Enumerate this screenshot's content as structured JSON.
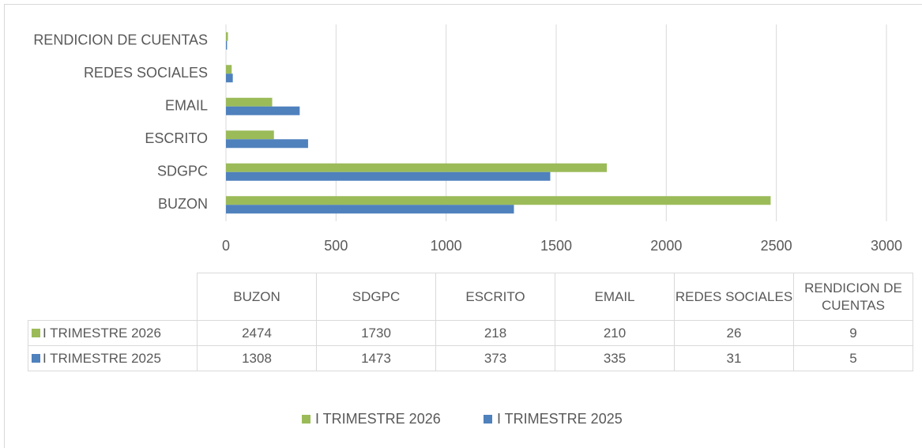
{
  "chart_data": {
    "type": "bar",
    "orientation": "horizontal",
    "categories": [
      "BUZON",
      "SDGPC",
      "ESCRITO",
      "EMAIL",
      "REDES SOCIALES",
      "RENDICION DE CUENTAS"
    ],
    "series": [
      {
        "name": "I TRIMESTRE 2026",
        "color": "#9bbb59",
        "values": [
          2474,
          1730,
          218,
          210,
          26,
          9
        ]
      },
      {
        "name": "I TRIMESTRE 2025",
        "color": "#4f81bd",
        "values": [
          1308,
          1473,
          373,
          335,
          31,
          5
        ]
      }
    ],
    "xlim": [
      0,
      3000
    ],
    "xticks": [
      0,
      500,
      1000,
      1500,
      2000,
      2500,
      3000
    ],
    "grid": true,
    "legend": "bottom",
    "data_table": true
  }
}
